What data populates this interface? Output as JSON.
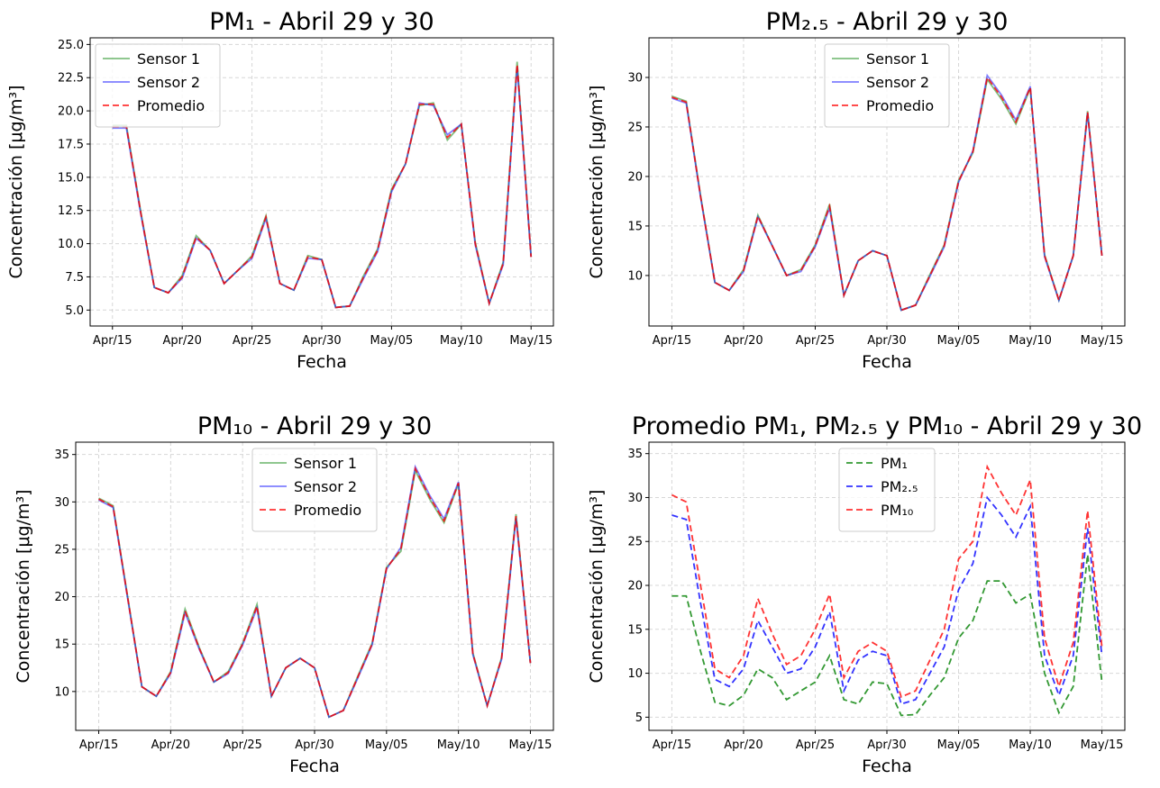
{
  "chart_data": [
    {
      "type": "line",
      "title": "PM₁ - Abril 29 y 30",
      "xlabel": "Fecha",
      "ylabel": "Concentración [μg/m³]",
      "x": [
        "Apr/15",
        "Apr/16",
        "Apr/17",
        "Apr/18",
        "Apr/19",
        "Apr/20",
        "Apr/21",
        "Apr/22",
        "Apr/23",
        "Apr/24",
        "Apr/25",
        "Apr/26",
        "Apr/27",
        "Apr/28",
        "Apr/29",
        "Apr/30",
        "May/01",
        "May/02",
        "May/03",
        "May/04",
        "May/05",
        "May/06",
        "May/07",
        "May/08",
        "May/09",
        "May/10",
        "May/11",
        "May/12",
        "May/13",
        "May/14",
        "May/15"
      ],
      "xticks": [
        "Apr/15",
        "Apr/20",
        "Apr/25",
        "Apr/30",
        "May/05",
        "May/10",
        "May/15"
      ],
      "ylim": [
        3.8,
        25.5
      ],
      "yticks": [
        {
          "value": 5,
          "label": "5.0"
        },
        7.5,
        {
          "value": 10,
          "label": "10.0"
        },
        12.5,
        {
          "value": 15,
          "label": "15.0"
        },
        17.5,
        {
          "value": 20,
          "label": "20.0"
        },
        22.5,
        {
          "value": 25,
          "label": "25.0"
        }
      ],
      "grid": true,
      "legend": "upper left",
      "series": [
        {
          "name": "Sensor 1",
          "color": "#008000",
          "alpha": 0.5,
          "linestyle": "solid",
          "values": [
            18.9,
            18.9,
            12.6,
            6.7,
            6.3,
            7.6,
            10.6,
            9.5,
            7.0,
            8.0,
            9.1,
            12.1,
            7.0,
            6.5,
            9.1,
            8.8,
            5.2,
            5.3,
            7.6,
            9.6,
            14.1,
            16.0,
            20.4,
            20.6,
            17.8,
            19.0,
            10.1,
            5.5,
            8.6,
            23.7,
            9.0
          ]
        },
        {
          "name": "Sensor 2",
          "color": "#0000ff",
          "alpha": 0.5,
          "linestyle": "solid",
          "values": [
            18.7,
            18.7,
            12.4,
            6.7,
            6.3,
            7.4,
            10.4,
            9.5,
            7.0,
            8.0,
            8.9,
            11.9,
            7.0,
            6.5,
            8.9,
            8.8,
            5.2,
            5.3,
            7.4,
            9.4,
            13.9,
            16.0,
            20.6,
            20.4,
            18.2,
            19.0,
            9.9,
            5.5,
            8.4,
            23.3,
            9.0
          ]
        },
        {
          "name": "Promedio",
          "color": "#ff0000",
          "alpha": 0.8,
          "linestyle": "dashed",
          "values": [
            18.8,
            18.8,
            12.5,
            6.7,
            6.3,
            7.5,
            10.5,
            9.5,
            7.0,
            8.0,
            9.0,
            12.0,
            7.0,
            6.5,
            9.0,
            8.8,
            5.2,
            5.3,
            7.5,
            9.5,
            14.0,
            16.0,
            20.5,
            20.5,
            18.0,
            19.0,
            10.0,
            5.5,
            8.5,
            23.5,
            9.0
          ]
        }
      ]
    },
    {
      "type": "line",
      "title": "PM₂.₅ - Abril 29 y 30",
      "xlabel": "Fecha",
      "ylabel": "Concentración [μg/m³]",
      "x": [
        "Apr/15",
        "Apr/16",
        "Apr/17",
        "Apr/18",
        "Apr/19",
        "Apr/20",
        "Apr/21",
        "Apr/22",
        "Apr/23",
        "Apr/24",
        "Apr/25",
        "Apr/26",
        "Apr/27",
        "Apr/28",
        "Apr/29",
        "Apr/30",
        "May/01",
        "May/02",
        "May/03",
        "May/04",
        "May/05",
        "May/06",
        "May/07",
        "May/08",
        "May/09",
        "May/10",
        "May/11",
        "May/12",
        "May/13",
        "May/14",
        "May/15"
      ],
      "xticks": [
        "Apr/15",
        "Apr/20",
        "Apr/25",
        "Apr/30",
        "May/05",
        "May/10",
        "May/15"
      ],
      "ylim": [
        4.9,
        34
      ],
      "yticks": [
        10,
        15,
        20,
        25,
        30
      ],
      "grid": true,
      "legend": "upper center",
      "series": [
        {
          "name": "Sensor 1",
          "color": "#008000",
          "alpha": 0.5,
          "linestyle": "solid",
          "values": [
            28.1,
            27.6,
            18.1,
            9.3,
            8.5,
            10.6,
            16.1,
            13.0,
            10.0,
            10.6,
            13.1,
            17.2,
            8.0,
            11.5,
            12.5,
            12.0,
            6.5,
            7.0,
            10.1,
            13.1,
            19.6,
            22.4,
            29.8,
            27.8,
            25.3,
            28.9,
            12.1,
            7.5,
            12.0,
            26.6,
            12.0
          ]
        },
        {
          "name": "Sensor 2",
          "color": "#0000ff",
          "alpha": 0.5,
          "linestyle": "solid",
          "values": [
            27.9,
            27.4,
            17.9,
            9.3,
            8.5,
            10.4,
            15.9,
            13.0,
            10.0,
            10.4,
            12.9,
            16.8,
            8.0,
            11.5,
            12.5,
            12.0,
            6.5,
            7.0,
            9.9,
            12.9,
            19.4,
            22.6,
            30.2,
            28.2,
            25.7,
            29.1,
            11.9,
            7.5,
            12.0,
            26.4,
            12.0
          ]
        },
        {
          "name": "Promedio",
          "color": "#ff0000",
          "alpha": 0.8,
          "linestyle": "dashed",
          "values": [
            28.0,
            27.5,
            18.0,
            9.3,
            8.5,
            10.5,
            16.0,
            13.0,
            10.0,
            10.5,
            13.0,
            17.0,
            8.0,
            11.5,
            12.5,
            12.0,
            6.5,
            7.0,
            10.0,
            13.0,
            19.5,
            22.5,
            30.0,
            28.0,
            25.5,
            29.0,
            12.0,
            7.5,
            12.0,
            26.5,
            12.0
          ]
        }
      ]
    },
    {
      "type": "line",
      "title": "PM₁₀ - Abril 29 y 30",
      "xlabel": "Fecha",
      "ylabel": "Concentración [μg/m³]",
      "x": [
        "Apr/15",
        "Apr/16",
        "Apr/17",
        "Apr/18",
        "Apr/19",
        "Apr/20",
        "Apr/21",
        "Apr/22",
        "Apr/23",
        "Apr/24",
        "Apr/25",
        "Apr/26",
        "Apr/27",
        "Apr/28",
        "Apr/29",
        "Apr/30",
        "May/01",
        "May/02",
        "May/03",
        "May/04",
        "May/05",
        "May/06",
        "May/07",
        "May/08",
        "May/09",
        "May/10",
        "May/11",
        "May/12",
        "May/13",
        "May/14",
        "May/15"
      ],
      "xticks": [
        "Apr/15",
        "Apr/20",
        "Apr/25",
        "Apr/30",
        "May/05",
        "May/10",
        "May/15"
      ],
      "ylim": [
        5.9,
        36.3
      ],
      "yticks": [
        10,
        15,
        20,
        25,
        30,
        35
      ],
      "grid": true,
      "legend": "upper center",
      "series": [
        {
          "name": "Sensor 1",
          "color": "#008000",
          "alpha": 0.5,
          "linestyle": "solid",
          "values": [
            30.4,
            29.6,
            20.1,
            10.5,
            9.5,
            12.1,
            18.7,
            14.6,
            11.0,
            12.1,
            15.1,
            19.2,
            9.5,
            12.5,
            13.5,
            12.5,
            7.3,
            8.0,
            11.6,
            15.1,
            23.1,
            24.8,
            33.3,
            30.3,
            27.8,
            31.9,
            14.1,
            8.5,
            13.6,
            28.7,
            13.0
          ]
        },
        {
          "name": "Sensor 2",
          "color": "#0000ff",
          "alpha": 0.5,
          "linestyle": "solid",
          "values": [
            30.2,
            29.4,
            19.9,
            10.5,
            9.5,
            11.9,
            18.3,
            14.4,
            11.0,
            11.9,
            14.9,
            18.8,
            9.5,
            12.5,
            13.5,
            12.5,
            7.3,
            8.0,
            11.4,
            14.9,
            22.9,
            25.2,
            33.7,
            30.7,
            28.2,
            32.1,
            13.9,
            8.5,
            13.4,
            28.3,
            13.0
          ]
        },
        {
          "name": "Promedio",
          "color": "#ff0000",
          "alpha": 0.8,
          "linestyle": "dashed",
          "values": [
            30.3,
            29.5,
            20.0,
            10.5,
            9.5,
            12.0,
            18.5,
            14.5,
            11.0,
            12.0,
            15.0,
            19.0,
            9.5,
            12.5,
            13.5,
            12.5,
            7.3,
            8.0,
            11.5,
            15.0,
            23.0,
            25.0,
            33.5,
            30.5,
            28.0,
            32.0,
            14.0,
            8.5,
            13.5,
            28.5,
            13.0
          ]
        }
      ]
    },
    {
      "type": "line",
      "title": "Promedio PM₁, PM₂.₅ y PM₁₀ - Abril 29 y 30",
      "xlabel": "Fecha",
      "ylabel": "Concentración [μg/m³]",
      "x": [
        "Apr/15",
        "Apr/16",
        "Apr/17",
        "Apr/18",
        "Apr/19",
        "Apr/20",
        "Apr/21",
        "Apr/22",
        "Apr/23",
        "Apr/24",
        "Apr/25",
        "Apr/26",
        "Apr/27",
        "Apr/28",
        "Apr/29",
        "Apr/30",
        "May/01",
        "May/02",
        "May/03",
        "May/04",
        "May/05",
        "May/06",
        "May/07",
        "May/08",
        "May/09",
        "May/10",
        "May/11",
        "May/12",
        "May/13",
        "May/14",
        "May/15"
      ],
      "xticks": [
        "Apr/15",
        "Apr/20",
        "Apr/25",
        "Apr/30",
        "May/05",
        "May/10",
        "May/15"
      ],
      "ylim": [
        3.5,
        36.3
      ],
      "yticks": [
        5,
        10,
        15,
        20,
        25,
        30,
        35
      ],
      "grid": true,
      "legend": "upper center",
      "series": [
        {
          "name": "PM₁",
          "color": "#008000",
          "alpha": 0.8,
          "linestyle": "dashed",
          "values": [
            18.8,
            18.8,
            12.5,
            6.7,
            6.3,
            7.5,
            10.5,
            9.5,
            7.0,
            8.0,
            9.0,
            12.0,
            7.0,
            6.5,
            9.0,
            8.8,
            5.2,
            5.3,
            7.5,
            9.5,
            14.0,
            16.0,
            20.5,
            20.5,
            18.0,
            19.0,
            10.0,
            5.5,
            8.5,
            23.5,
            9.0
          ]
        },
        {
          "name": "PM₂.₅",
          "color": "#0000ff",
          "alpha": 0.8,
          "linestyle": "dashed",
          "values": [
            28.0,
            27.5,
            18.0,
            9.3,
            8.5,
            10.5,
            16.0,
            13.0,
            10.0,
            10.5,
            13.0,
            17.0,
            8.0,
            11.5,
            12.5,
            12.0,
            6.5,
            7.0,
            10.0,
            13.0,
            19.5,
            22.5,
            30.0,
            28.0,
            25.5,
            29.0,
            12.0,
            7.5,
            12.0,
            26.5,
            12.0
          ]
        },
        {
          "name": "PM₁₀",
          "color": "#ff0000",
          "alpha": 0.8,
          "linestyle": "dashed",
          "values": [
            30.3,
            29.5,
            20.0,
            10.5,
            9.5,
            12.0,
            18.5,
            14.5,
            11.0,
            12.0,
            15.0,
            19.0,
            9.5,
            12.5,
            13.5,
            12.5,
            7.3,
            8.0,
            11.5,
            15.0,
            23.0,
            25.0,
            33.5,
            30.5,
            28.0,
            32.0,
            14.0,
            8.5,
            13.5,
            28.5,
            13.0
          ]
        }
      ]
    }
  ]
}
